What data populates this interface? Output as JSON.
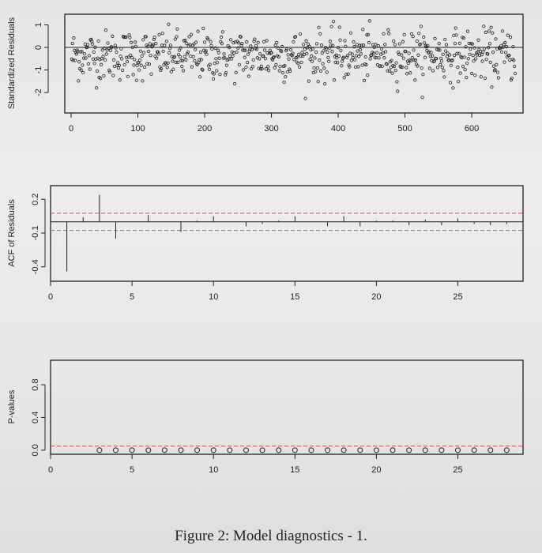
{
  "figure_caption": "Figure 2: Model diagnostics - 1.",
  "colors": {
    "ink": "#222222",
    "ref_line": "#e05050",
    "background": "#e9e9e9"
  },
  "chart_data": [
    {
      "type": "scatter",
      "name": "standardized-residuals",
      "ylabel": "Standardized Residuals",
      "xlabel": "",
      "xlim": [
        0,
        665
      ],
      "ylim": [
        -2.8,
        1.4
      ],
      "xticks": [
        0,
        100,
        200,
        300,
        400,
        500,
        600
      ],
      "yticks": [
        -2,
        -1,
        0,
        1
      ],
      "xtick_labels": [
        "0",
        "100",
        "200",
        "300",
        "400",
        "500",
        "600"
      ],
      "ytick_labels": [
        "-2",
        "-1",
        "0",
        "1"
      ],
      "hline": 0,
      "n_points": 665,
      "marker": "open-circle",
      "approx_range": [
        -2.5,
        1.2
      ]
    },
    {
      "type": "bar",
      "name": "acf-of-residuals",
      "ylabel": "ACF of Residuals",
      "xlabel": "",
      "xlim": [
        0,
        29
      ],
      "ylim": [
        -0.5,
        0.3
      ],
      "xticks": [
        0,
        5,
        10,
        15,
        20,
        25
      ],
      "yticks": [
        -0.4,
        -0.1,
        0.2
      ],
      "xtick_labels": [
        "0",
        "5",
        "10",
        "15",
        "20",
        "25"
      ],
      "ytick_labels": [
        "-0.4",
        "-0.1",
        "0.2"
      ],
      "x": [
        1,
        2,
        3,
        4,
        5,
        6,
        7,
        8,
        9,
        10,
        11,
        12,
        13,
        14,
        15,
        16,
        17,
        18,
        19,
        20,
        21,
        22,
        23,
        24,
        25,
        26,
        27,
        28
      ],
      "values": [
        -0.44,
        0.04,
        0.24,
        -0.15,
        0.0,
        0.06,
        0.0,
        -0.09,
        0.01,
        0.05,
        0.0,
        -0.04,
        -0.02,
        0.01,
        0.05,
        0.0,
        -0.04,
        0.05,
        -0.04,
        0.01,
        0.01,
        -0.03,
        0.02,
        -0.03,
        0.03,
        -0.02,
        -0.03,
        -0.02
      ],
      "conf_bounds": [
        -0.076,
        0.076
      ]
    },
    {
      "type": "scatter",
      "name": "p-values",
      "ylabel": "P-values",
      "xlabel": "",
      "xlim": [
        0,
        29
      ],
      "ylim": [
        -0.05,
        1.1
      ],
      "xticks": [
        0,
        5,
        10,
        15,
        20,
        25
      ],
      "yticks": [
        0.0,
        0.4,
        0.8
      ],
      "xtick_labels": [
        "0",
        "5",
        "10",
        "15",
        "20",
        "25"
      ],
      "ytick_labels": [
        "0.0",
        "0.4",
        "0.8"
      ],
      "x": [
        3,
        4,
        5,
        6,
        7,
        8,
        9,
        10,
        11,
        12,
        13,
        14,
        15,
        16,
        17,
        18,
        19,
        20,
        21,
        22,
        23,
        24,
        25,
        26,
        27,
        28
      ],
      "values": [
        0,
        0,
        0,
        0,
        0,
        0,
        0,
        0,
        0,
        0,
        0,
        0,
        0,
        0,
        0,
        0,
        0,
        0,
        0,
        0,
        0,
        0,
        0,
        0,
        0,
        0
      ],
      "hline": 0.05,
      "marker": "open-circle"
    }
  ]
}
